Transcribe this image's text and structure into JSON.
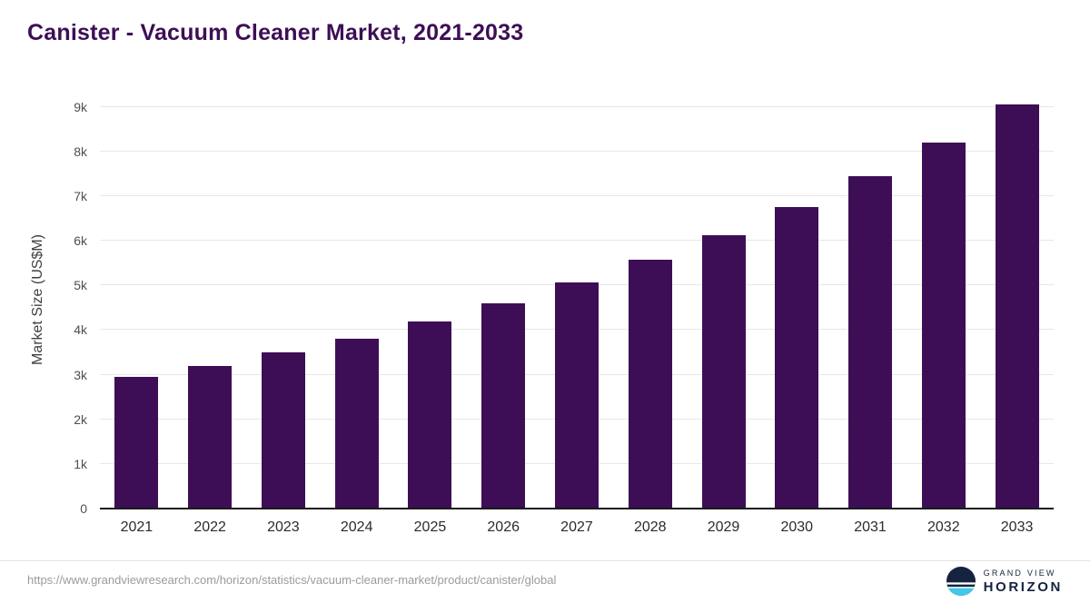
{
  "page": {
    "title": "Canister - Vacuum Cleaner Market, 2021-2033",
    "source_url": "https://www.grandviewresearch.com/horizon/statistics/vacuum-cleaner-market/product/canister/global",
    "brand": {
      "line1": "GRAND VIEW",
      "line2": "HORIZON"
    }
  },
  "colors": {
    "bar": "#3d0e56",
    "title_color": "#3d0e56",
    "grid": "#e7e7e7",
    "baseline": "#1a1a1a",
    "url_text": "#9b9b9b",
    "brand_navy": "#16233f",
    "brand_cyan": "#45c6e8"
  },
  "chart_data": {
    "type": "bar",
    "title": "Canister - Vacuum Cleaner Market, 2021-2033",
    "xlabel": "",
    "ylabel": "Market Size (US$M)",
    "categories": [
      "2021",
      "2022",
      "2023",
      "2024",
      "2025",
      "2026",
      "2027",
      "2028",
      "2029",
      "2030",
      "2031",
      "2032",
      "2033"
    ],
    "values": [
      2950,
      3200,
      3500,
      3800,
      4190,
      4600,
      5070,
      5580,
      6120,
      6750,
      7450,
      8200,
      9050
    ],
    "ylim": [
      0,
      9400
    ],
    "yticks": [
      {
        "value": 0,
        "label": "0"
      },
      {
        "value": 1000,
        "label": "1k"
      },
      {
        "value": 2000,
        "label": "2k"
      },
      {
        "value": 3000,
        "label": "3k"
      },
      {
        "value": 4000,
        "label": "4k"
      },
      {
        "value": 5000,
        "label": "5k"
      },
      {
        "value": 6000,
        "label": "6k"
      },
      {
        "value": 7000,
        "label": "7k"
      },
      {
        "value": 8000,
        "label": "8k"
      },
      {
        "value": 9000,
        "label": "9k"
      }
    ],
    "grid": "horizontal",
    "legend": "none",
    "bar_color": "#3d0e56"
  }
}
